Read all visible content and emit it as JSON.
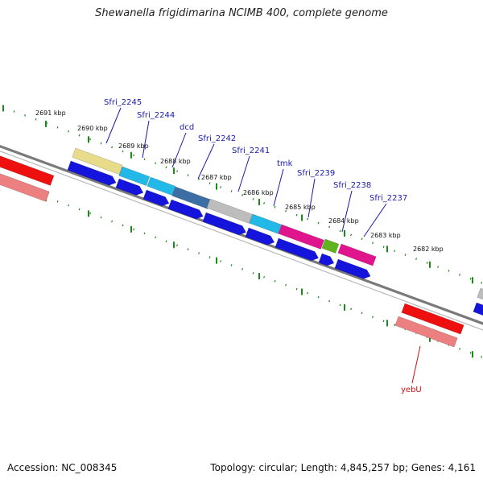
{
  "title": "Shewanella frigidimarina NCIMB 400, complete genome",
  "footer": {
    "accession": "Accession: NC_008345",
    "stats": "Topology: circular; Length: 4,845,257 bp; Genes: 4,161"
  },
  "scale_labels": [
    "2691 kbp",
    "2690 kbp",
    "2689 kbp",
    "2688 kbp",
    "2687 kbp",
    "2686 kbp",
    "2685 kbp",
    "2684 kbp",
    "2683 kbp",
    "2682 kbp"
  ],
  "gene_labels": [
    {
      "text": "Sfri_2245",
      "color": "blue"
    },
    {
      "text": "Sfri_2244",
      "color": "blue"
    },
    {
      "text": "dcd",
      "color": "blue"
    },
    {
      "text": "Sfri_2242",
      "color": "blue"
    },
    {
      "text": "Sfri_2241",
      "color": "blue"
    },
    {
      "text": "tmk",
      "color": "blue"
    },
    {
      "text": "Sfri_2239",
      "color": "blue"
    },
    {
      "text": "Sfri_2238",
      "color": "blue"
    },
    {
      "text": "Sfri_2237",
      "color": "blue"
    },
    {
      "text": "yebU",
      "color": "red"
    }
  ],
  "colors": {
    "backbone": "#7a7a7a",
    "tick_green": "#1a8a1a",
    "cds_blue": "#1414dc",
    "yellow": "#e8dc8a",
    "cyan": "#22b8e8",
    "steelblue": "#3a6ea5",
    "gray": "#bdbdbd",
    "magenta": "#e0148c",
    "lime": "#5fb41e",
    "red": "#ee0f0f",
    "pink": "#ec8080"
  }
}
